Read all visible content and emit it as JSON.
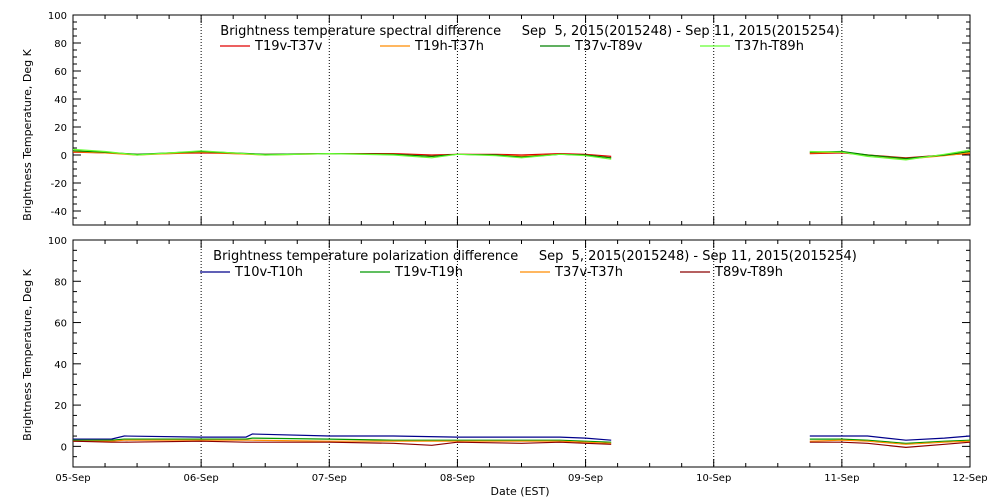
{
  "chart_data": [
    {
      "type": "line",
      "title": "Brightness temperature spectral difference     Sep  5, 2015(2015248) - Sep 11, 2015(2015254)",
      "ylabel": "Brightness Temperature, Deg K",
      "xlabel": "",
      "ylim": [
        -50,
        100
      ],
      "yticks": [
        -40,
        -20,
        0,
        20,
        40,
        60,
        80,
        100
      ],
      "xlim": [
        0,
        7
      ],
      "xticks": [
        0,
        1,
        2,
        3,
        4,
        5,
        6,
        7
      ],
      "xtick_labels": [
        "",
        "",
        "",
        "",
        "",
        "",
        "",
        ""
      ],
      "grid_x": [
        1,
        2,
        3,
        4,
        5,
        6
      ],
      "legend_position": "top",
      "series": [
        {
          "name": "T19v-T37v",
          "color": "#e00000",
          "segments": [
            {
              "x": [
                0,
                0.25,
                0.5,
                1.0,
                1.5,
                2.0,
                2.5,
                2.8,
                3.0,
                3.3,
                3.5,
                3.8,
                4.0,
                4.2
              ],
              "y": [
                2,
                1.5,
                0.5,
                1.5,
                0.5,
                1,
                1,
                0,
                0.5,
                0.5,
                0,
                1,
                0.5,
                -1
              ]
            },
            {
              "x": [
                5.75,
                6.0,
                6.2,
                6.5,
                6.8,
                7.0
              ],
              "y": [
                1,
                1.5,
                0,
                -2,
                0,
                1
              ]
            }
          ]
        },
        {
          "name": "T19h-T37h",
          "color": "#ff8c00",
          "segments": [
            {
              "x": [
                0,
                0.25,
                0.5,
                1.0,
                1.5,
                2.0,
                2.5,
                2.8,
                3.0,
                3.3,
                3.5,
                3.8,
                4.0,
                4.2
              ],
              "y": [
                2.5,
                1.5,
                0,
                2,
                0,
                1,
                0.5,
                -1,
                0.5,
                0,
                -1,
                0.5,
                0,
                -2
              ]
            },
            {
              "x": [
                5.75,
                6.0,
                6.2,
                6.5,
                6.8,
                7.0
              ],
              "y": [
                1.5,
                2,
                0,
                -3,
                -0.5,
                1.5
              ]
            }
          ]
        },
        {
          "name": "T37v-T89v",
          "color": "#008000",
          "segments": [
            {
              "x": [
                0,
                0.25,
                0.5,
                1.0,
                1.5,
                2.0,
                2.5,
                2.8,
                3.0,
                3.3,
                3.5,
                3.8,
                4.0,
                4.2
              ],
              "y": [
                3,
                2,
                0.5,
                2.5,
                0.5,
                1,
                0.5,
                -1,
                0.5,
                0,
                -1.5,
                0.5,
                0,
                -2
              ]
            },
            {
              "x": [
                5.75,
                6.0,
                6.2,
                6.5,
                6.8,
                7.0
              ],
              "y": [
                2,
                2.5,
                0,
                -2.5,
                0,
                2.5
              ]
            }
          ]
        },
        {
          "name": "T37h-T89h",
          "color": "#66ff33",
          "segments": [
            {
              "x": [
                0,
                0.25,
                0.5,
                1.0,
                1.5,
                2.0,
                2.5,
                2.8,
                3.0,
                3.3,
                3.5,
                3.8,
                4.0,
                4.2
              ],
              "y": [
                4,
                2.5,
                0,
                3,
                0,
                1,
                0,
                -2,
                0.5,
                -0.5,
                -2,
                0.5,
                -0.5,
                -3
              ]
            },
            {
              "x": [
                5.75,
                6.0,
                6.2,
                6.5,
                6.8,
                7.0
              ],
              "y": [
                2.5,
                2,
                -1,
                -3.5,
                0.5,
                3.5
              ]
            }
          ]
        }
      ]
    },
    {
      "type": "line",
      "title": "Brightness temperature polarization difference     Sep  5, 2015(2015248) - Sep 11, 2015(2015254)",
      "ylabel": "Brightness Temperature, Deg K",
      "xlabel": "Date (EST)",
      "ylim": [
        -10,
        100
      ],
      "yticks": [
        0,
        20,
        40,
        60,
        80,
        100
      ],
      "xlim": [
        0,
        7
      ],
      "xticks": [
        0,
        1,
        2,
        3,
        4,
        5,
        6,
        7
      ],
      "xtick_labels": [
        "05-Sep",
        "06-Sep",
        "07-Sep",
        "08-Sep",
        "09-Sep",
        "10-Sep",
        "11-Sep",
        "12-Sep"
      ],
      "grid_x": [
        1,
        2,
        3,
        4,
        5,
        6
      ],
      "legend_position": "top",
      "series": [
        {
          "name": "T10v-T10h",
          "color": "#00008b",
          "segments": [
            {
              "x": [
                0,
                0.3,
                0.4,
                1.0,
                1.35,
                1.4,
                2.0,
                2.5,
                3.0,
                3.5,
                3.8,
                4.0,
                4.2
              ],
              "y": [
                3.5,
                3.5,
                5,
                4.5,
                4.5,
                6,
                5,
                5,
                4.5,
                4.5,
                4.5,
                4,
                3
              ]
            },
            {
              "x": [
                5.75,
                6.0,
                6.2,
                6.5,
                6.8,
                7.0
              ],
              "y": [
                5,
                5,
                5,
                3,
                4,
                5
              ]
            }
          ]
        },
        {
          "name": "T19v-T19h",
          "color": "#009900",
          "segments": [
            {
              "x": [
                0,
                0.3,
                0.4,
                1.0,
                1.35,
                1.4,
                2.0,
                2.5,
                3.0,
                3.5,
                3.8,
                4.0,
                4.2
              ],
              "y": [
                3,
                3,
                3.5,
                3.5,
                3.5,
                4,
                3.5,
                3,
                3,
                3,
                3,
                2.5,
                2
              ]
            },
            {
              "x": [
                5.75,
                6.0,
                6.2,
                6.5,
                6.8,
                7.0
              ],
              "y": [
                3.5,
                3.5,
                3,
                1.5,
                2.5,
                3
              ]
            }
          ]
        },
        {
          "name": "T37v-T37h",
          "color": "#ff8c00",
          "segments": [
            {
              "x": [
                0,
                0.3,
                0.4,
                1.0,
                1.35,
                1.4,
                2.0,
                2.5,
                3.0,
                3.5,
                3.8,
                4.0,
                4.2
              ],
              "y": [
                2.5,
                2.5,
                3,
                3,
                3,
                3,
                2.5,
                2.5,
                2.5,
                2.5,
                2.5,
                2,
                1.5
              ]
            },
            {
              "x": [
                5.75,
                6.0,
                6.2,
                6.5,
                6.8,
                7.0
              ],
              "y": [
                2.5,
                3,
                2.5,
                1,
                2,
                2.5
              ]
            }
          ]
        },
        {
          "name": "T89v-T89h",
          "color": "#8b0000",
          "segments": [
            {
              "x": [
                0,
                0.3,
                0.4,
                1.0,
                1.35,
                1.4,
                2.0,
                2.5,
                2.8,
                3.0,
                3.5,
                3.8,
                4.0,
                4.2
              ],
              "y": [
                2.5,
                2,
                2,
                2.5,
                2,
                2,
                2,
                1.5,
                0.5,
                2,
                1.5,
                2,
                1.5,
                1
              ]
            },
            {
              "x": [
                5.75,
                6.0,
                6.2,
                6.5,
                6.8,
                7.0
              ],
              "y": [
                2,
                2,
                1.5,
                -0.5,
                1,
                2
              ]
            }
          ]
        }
      ]
    }
  ]
}
